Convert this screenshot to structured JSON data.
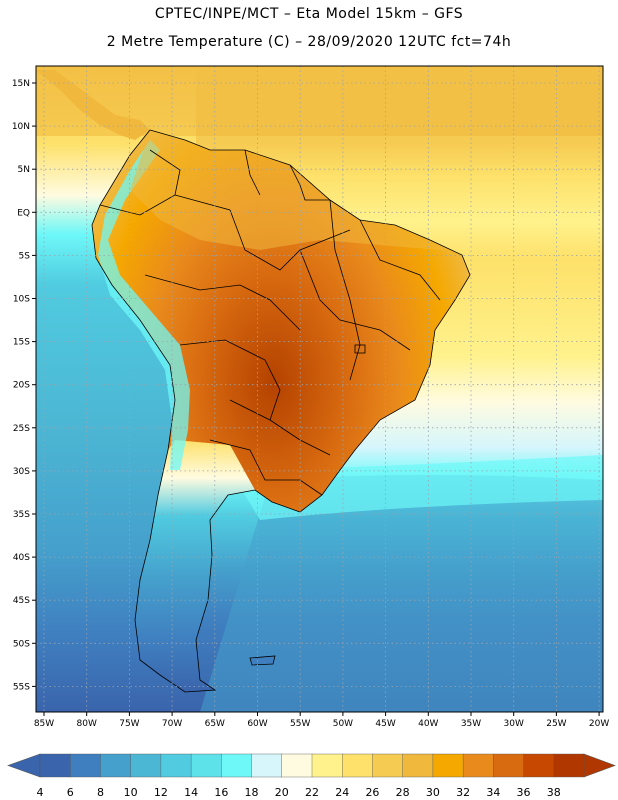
{
  "header": {
    "line1": "CPTEC/INPE/MCT –  Eta Model 15km – GFS",
    "line2": "2 Metre Temperature (C) – 28/09/2020 12UTC fct=74h"
  },
  "map": {
    "lat_labels": [
      "15N",
      "10N",
      "5N",
      "EQ",
      "5S",
      "10S",
      "15S",
      "20S",
      "25S",
      "30S",
      "35S",
      "40S",
      "45S",
      "50S",
      "55S"
    ],
    "lon_labels": [
      "85W",
      "80W",
      "75W",
      "70W",
      "65W",
      "60W",
      "55W",
      "50W",
      "45W",
      "40W",
      "35W",
      "30W",
      "25W",
      "20W"
    ]
  },
  "colorbar": {
    "labels": [
      "4",
      "6",
      "8",
      "10",
      "12",
      "14",
      "16",
      "18",
      "20",
      "22",
      "24",
      "26",
      "28",
      "30",
      "32",
      "34",
      "36",
      "38"
    ],
    "colors": [
      "#3a64ac",
      "#3f7fc0",
      "#45a0cc",
      "#4cb7d4",
      "#50cbe0",
      "#5ee2ea",
      "#6ef8f8",
      "#d6f6fc",
      "#fffbe0",
      "#fff28c",
      "#fde16a",
      "#f6cb52",
      "#f0b83c",
      "#f5a800",
      "#e98a1c",
      "#d86a10",
      "#c74800",
      "#b03800"
    ]
  }
}
